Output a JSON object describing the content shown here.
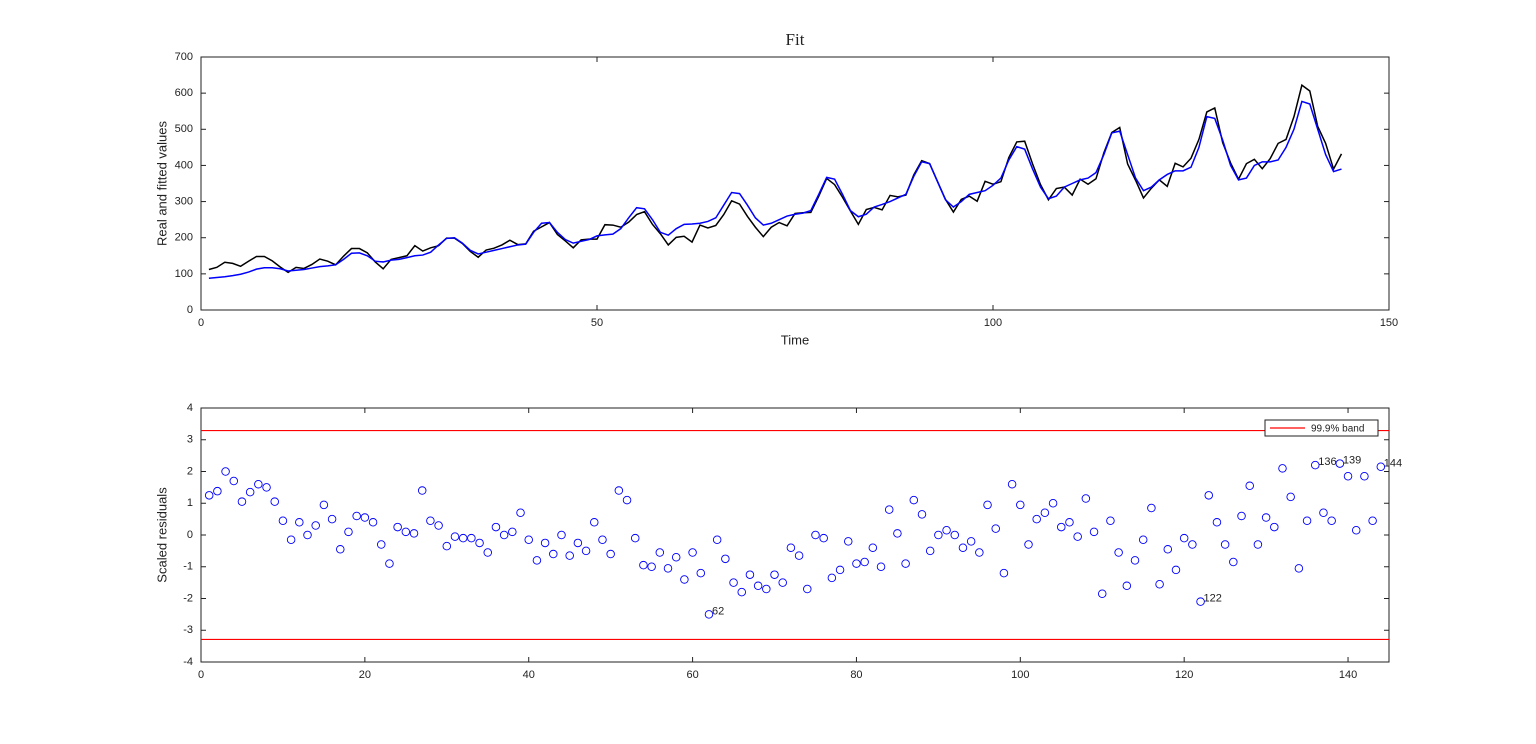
{
  "chart_data": [
    {
      "type": "line",
      "title": "Fit",
      "xlabel": "Time",
      "ylabel": "Real and fitted values",
      "x": [
        1,
        2,
        3,
        4,
        5,
        6,
        7,
        8,
        9,
        10,
        11,
        12,
        13,
        14,
        15,
        16,
        17,
        18,
        19,
        20,
        21,
        22,
        23,
        24,
        25,
        26,
        27,
        28,
        29,
        30,
        31,
        32,
        33,
        34,
        35,
        36,
        37,
        38,
        39,
        40,
        41,
        42,
        43,
        44,
        45,
        46,
        47,
        48,
        49,
        50,
        51,
        52,
        53,
        54,
        55,
        56,
        57,
        58,
        59,
        60,
        61,
        62,
        63,
        64,
        65,
        66,
        67,
        68,
        69,
        70,
        71,
        72,
        73,
        74,
        75,
        76,
        77,
        78,
        79,
        80,
        81,
        82,
        83,
        84,
        85,
        86,
        87,
        88,
        89,
        90,
        91,
        92,
        93,
        94,
        95,
        96,
        97,
        98,
        99,
        100,
        101,
        102,
        103,
        104,
        105,
        106,
        107,
        108,
        109,
        110,
        111,
        112,
        113,
        114,
        115,
        116,
        117,
        118,
        119,
        120,
        121,
        122,
        123,
        124,
        125,
        126,
        127,
        128,
        129,
        130,
        131,
        132,
        133,
        134,
        135,
        136,
        137,
        138,
        139,
        140,
        141,
        142,
        143,
        144
      ],
      "series": [
        {
          "color": "#000000",
          "values": [
            112,
            118,
            132,
            129,
            121,
            135,
            148,
            148,
            136,
            119,
            104,
            118,
            115,
            126,
            141,
            135,
            125,
            149,
            170,
            170,
            158,
            133,
            114,
            140,
            145,
            150,
            178,
            163,
            172,
            178,
            199,
            199,
            184,
            162,
            146,
            166,
            171,
            180,
            193,
            181,
            183,
            218,
            230,
            242,
            209,
            191,
            172,
            194,
            196,
            196,
            236,
            235,
            229,
            243,
            264,
            272,
            237,
            211,
            180,
            201,
            204,
            188,
            235,
            227,
            234,
            264,
            302,
            293,
            259,
            229,
            203,
            229,
            242,
            233,
            267,
            269,
            270,
            315,
            364,
            347,
            312,
            274,
            237,
            278,
            284,
            277,
            317,
            313,
            318,
            374,
            413,
            405,
            355,
            306,
            271,
            306,
            315,
            301,
            356,
            348,
            355,
            422,
            465,
            467,
            404,
            347,
            305,
            336,
            340,
            318,
            362,
            348,
            363,
            435,
            491,
            505,
            404,
            359,
            310,
            337,
            360,
            342,
            406,
            396,
            420,
            472,
            548,
            559,
            463,
            407,
            362,
            405,
            417,
            391,
            419,
            461,
            472,
            535,
            622,
            606,
            508,
            461,
            390,
            432
          ]
        },
        {
          "color": "#0000ff",
          "values": [
            88,
            90,
            92,
            95,
            99,
            105,
            113,
            117,
            117,
            114,
            108,
            110,
            112,
            116,
            120,
            122,
            125,
            140,
            157,
            158,
            150,
            135,
            133,
            138,
            140,
            145,
            150,
            152,
            160,
            180,
            198,
            200,
            185,
            165,
            155,
            160,
            165,
            170,
            175,
            180,
            182,
            215,
            240,
            242,
            215,
            195,
            185,
            190,
            195,
            205,
            208,
            210,
            225,
            255,
            283,
            280,
            250,
            215,
            207,
            225,
            237,
            238,
            240,
            245,
            255,
            290,
            325,
            322,
            290,
            255,
            235,
            240,
            250,
            260,
            265,
            268,
            275,
            320,
            367,
            362,
            320,
            275,
            258,
            265,
            285,
            292,
            300,
            310,
            320,
            370,
            410,
            405,
            355,
            305,
            285,
            300,
            320,
            325,
            330,
            345,
            365,
            415,
            452,
            445,
            390,
            340,
            308,
            315,
            340,
            350,
            360,
            365,
            380,
            430,
            490,
            495,
            430,
            365,
            330,
            340,
            360,
            375,
            385,
            385,
            395,
            450,
            535,
            530,
            470,
            400,
            360,
            365,
            400,
            410,
            410,
            415,
            450,
            500,
            577,
            570,
            500,
            430,
            383,
            390
          ]
        }
      ],
      "xlim": [
        0,
        150
      ],
      "xticks": [
        0,
        50,
        100,
        150
      ],
      "ylim": [
        0,
        700
      ],
      "yticks": [
        0,
        100,
        200,
        300,
        400,
        500,
        600,
        700
      ]
    },
    {
      "type": "scatter",
      "ylabel": "Scaled residuals",
      "x": [
        1,
        2,
        3,
        4,
        5,
        6,
        7,
        8,
        9,
        10,
        11,
        12,
        13,
        14,
        15,
        16,
        17,
        18,
        19,
        20,
        21,
        22,
        23,
        24,
        25,
        26,
        27,
        28,
        29,
        30,
        31,
        32,
        33,
        34,
        35,
        36,
        37,
        38,
        39,
        40,
        41,
        42,
        43,
        44,
        45,
        46,
        47,
        48,
        49,
        50,
        51,
        52,
        53,
        54,
        55,
        56,
        57,
        58,
        59,
        60,
        61,
        62,
        63,
        64,
        65,
        66,
        67,
        68,
        69,
        70,
        71,
        72,
        73,
        74,
        75,
        76,
        77,
        78,
        79,
        80,
        81,
        82,
        83,
        84,
        85,
        86,
        87,
        88,
        89,
        90,
        91,
        92,
        93,
        94,
        95,
        96,
        97,
        98,
        99,
        100,
        101,
        102,
        103,
        104,
        105,
        106,
        107,
        108,
        109,
        110,
        111,
        112,
        113,
        114,
        115,
        116,
        117,
        118,
        119,
        120,
        121,
        122,
        123,
        124,
        125,
        126,
        127,
        128,
        129,
        130,
        131,
        132,
        133,
        134,
        135,
        136,
        137,
        138,
        139,
        140,
        141,
        142,
        143,
        144
      ],
      "series": [
        {
          "color": "#0000ff",
          "values": [
            1.25,
            1.38,
            2.0,
            1.7,
            1.05,
            1.35,
            1.6,
            1.5,
            1.05,
            0.45,
            -0.15,
            0.4,
            0.0,
            0.3,
            0.95,
            0.5,
            -0.45,
            0.1,
            0.6,
            0.55,
            0.4,
            -0.3,
            -0.9,
            0.25,
            0.1,
            0.05,
            1.4,
            0.45,
            0.3,
            -0.35,
            -0.05,
            -0.1,
            -0.1,
            -0.25,
            -0.55,
            0.25,
            0.0,
            0.1,
            0.7,
            -0.15,
            -0.8,
            -0.25,
            -0.6,
            0.0,
            -0.65,
            -0.25,
            -0.5,
            0.4,
            -0.15,
            -0.6,
            1.4,
            1.1,
            -0.1,
            -0.95,
            -1.0,
            -0.55,
            -1.05,
            -0.7,
            -1.4,
            -0.55,
            -1.2,
            -2.5,
            -0.15,
            -0.75,
            -1.5,
            -1.8,
            -1.25,
            -1.6,
            -1.7,
            -1.25,
            -1.5,
            -0.4,
            -0.65,
            -1.7,
            0.0,
            -0.1,
            -1.35,
            -1.1,
            -0.2,
            -0.9,
            -0.85,
            -0.4,
            -1.0,
            0.8,
            0.05,
            -0.9,
            1.1,
            0.65,
            -0.5,
            0.0,
            0.15,
            0.0,
            -0.4,
            -0.2,
            -0.55,
            0.95,
            0.2,
            -1.2,
            1.6,
            0.95,
            -0.3,
            0.5,
            0.7,
            1.0,
            0.25,
            0.4,
            -0.05,
            1.15,
            0.1,
            -1.85,
            0.45,
            -0.55,
            -1.6,
            -0.8,
            -0.15,
            0.85,
            -1.55,
            -0.45,
            -1.1,
            -0.1,
            -0.3,
            -2.1,
            1.25,
            0.4,
            -0.3,
            -0.85,
            0.6,
            1.55,
            -0.3,
            0.55,
            0.25,
            2.1,
            1.2,
            -1.05,
            0.45,
            2.2,
            0.7,
            0.45,
            2.25,
            1.85,
            0.15,
            1.85,
            0.45,
            2.15
          ]
        }
      ],
      "labeled_points": [
        62,
        122,
        136,
        139,
        144
      ],
      "band": {
        "name": "99.9% band",
        "color": "#ff0000",
        "values": [
          3.29,
          -3.29
        ]
      },
      "legend": "upper right",
      "xlim": [
        0,
        145
      ],
      "xticks": [
        0,
        20,
        40,
        60,
        80,
        100,
        120,
        140
      ],
      "ylim": [
        -4,
        4
      ],
      "yticks": [
        -4,
        -3,
        -2,
        -1,
        0,
        1,
        2,
        3,
        4
      ]
    }
  ]
}
